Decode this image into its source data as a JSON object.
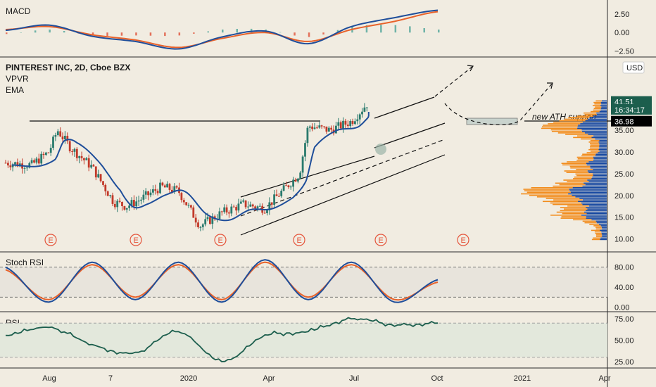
{
  "chart_data": [
    {
      "type": "line",
      "panel": "macd",
      "title": "MACD",
      "ylim": [
        -3,
        3.8
      ],
      "y_ticks": [
        "2.50",
        "0.00",
        "−2.50"
      ],
      "y_tick_values": [
        2.5,
        0,
        -2.5
      ],
      "x": [
        0,
        10,
        20,
        30,
        40,
        50,
        60,
        70,
        80,
        90,
        100
      ],
      "series": [
        {
          "values": [
            0.3,
            1.0,
            -0.5,
            -1.2,
            -2.2,
            -0.6,
            0.2,
            -1.5,
            0.8,
            2.0,
            3.0
          ]
        },
        {
          "values": [
            0.4,
            0.8,
            -0.3,
            -1.0,
            -2.0,
            -0.8,
            0.0,
            -1.2,
            0.4,
            1.5,
            2.8
          ]
        }
      ]
    },
    {
      "type": "candlestick",
      "panel": "price",
      "title": "PINTEREST INC, 2D, Cboe BZX",
      "indicators": [
        "VPVR",
        "EMA"
      ],
      "currency": "USD",
      "ylim": [
        8,
        51
      ],
      "y_ticks": [
        "10.00",
        "15.00",
        "20.00",
        "25.00",
        "30.00",
        "35.00"
      ],
      "y_tick_values": [
        10,
        15,
        20,
        25,
        30,
        35
      ],
      "price_tags": [
        {
          "label": "41.51",
          "value": 41.51,
          "color": "#1c5e4d"
        },
        {
          "label": "16:34:17",
          "value": 39.7,
          "color": "#1c5e4d"
        },
        {
          "label": "36.98",
          "value": 36.98,
          "color": "#000000"
        }
      ],
      "close_path": [
        {
          "x": 0,
          "y": 27.5
        },
        {
          "x": 6,
          "y": 27
        },
        {
          "x": 10,
          "y": 30
        },
        {
          "x": 12,
          "y": 35
        },
        {
          "x": 15,
          "y": 31
        },
        {
          "x": 20,
          "y": 26.5
        },
        {
          "x": 25,
          "y": 18.5
        },
        {
          "x": 28,
          "y": 17.5
        },
        {
          "x": 31,
          "y": 19
        },
        {
          "x": 36,
          "y": 22
        },
        {
          "x": 40,
          "y": 21
        },
        {
          "x": 45,
          "y": 13
        },
        {
          "x": 50,
          "y": 16
        },
        {
          "x": 55,
          "y": 18
        },
        {
          "x": 60,
          "y": 17
        },
        {
          "x": 65,
          "y": 22
        },
        {
          "x": 68,
          "y": 25
        },
        {
          "x": 70,
          "y": 36
        },
        {
          "x": 75,
          "y": 35
        },
        {
          "x": 80,
          "y": 37
        },
        {
          "x": 84,
          "y": 41.5
        }
      ],
      "annotation": "new ATH support",
      "earnings_marker": "E",
      "resistance_level": 37,
      "support_zone": [
        36.5,
        37.5
      ]
    },
    {
      "type": "line",
      "panel": "stoch_rsi",
      "title": "Stoch RSI",
      "ylim": [
        -5,
        105
      ],
      "y_ticks": [
        "80.00",
        "40.00",
        "0.00"
      ],
      "y_tick_values": [
        80,
        40,
        0
      ],
      "levels": [
        80,
        20
      ],
      "x": [
        0,
        10,
        20,
        30,
        40,
        50,
        60,
        70,
        80,
        90,
        100
      ],
      "series": [
        {
          "values": [
            80,
            10,
            90,
            15,
            90,
            10,
            95,
            15,
            90,
            10,
            55
          ]
        },
        {
          "values": [
            75,
            15,
            85,
            20,
            85,
            15,
            90,
            20,
            85,
            15,
            50
          ]
        }
      ]
    },
    {
      "type": "line",
      "panel": "rsi",
      "title": "RSI",
      "ylim": [
        20,
        80
      ],
      "y_ticks": [
        "75.00",
        "50.00",
        "25.00"
      ],
      "y_tick_values": [
        75,
        50,
        25
      ],
      "levels": [
        70,
        30
      ],
      "x": [
        0,
        10,
        20,
        30,
        40,
        50,
        60,
        70,
        80,
        90,
        100
      ],
      "series": [
        {
          "values": [
            55,
            65,
            45,
            35,
            60,
            25,
            55,
            60,
            75,
            68,
            70
          ]
        }
      ]
    }
  ],
  "x_axis": {
    "labels": [
      "Aug",
      "7",
      "2020",
      "Apr",
      "Jul",
      "Oct",
      "2021",
      "Apr"
    ]
  },
  "colors": {
    "background": "#f1ece1",
    "macd_line": "#1f4e9a",
    "signal_line": "#e8622a",
    "hist_positive": "#4fa59a",
    "hist_negative": "#e0523a",
    "candle_up": "#2a7a6d",
    "candle_down": "#c23a2a",
    "ema": "#1f4e9a",
    "vpvr_orange": "#f28c1c",
    "vpvr_blue": "#1446a0",
    "rsi_line": "#1c5e4d",
    "earnings": "#e5533a"
  }
}
